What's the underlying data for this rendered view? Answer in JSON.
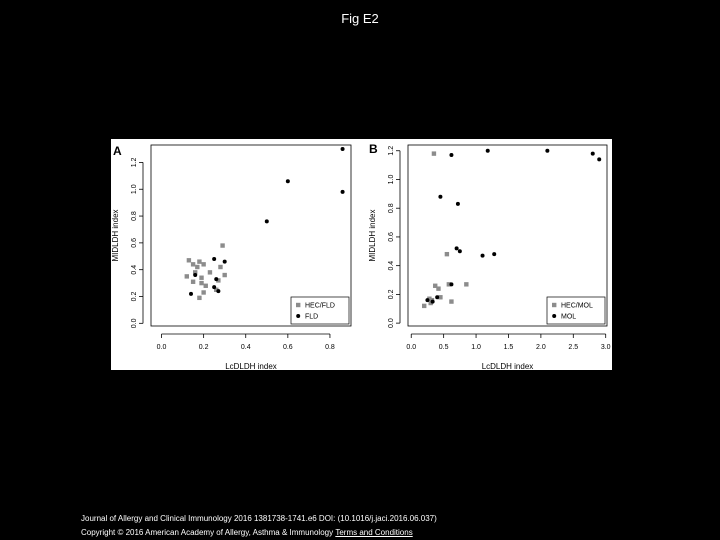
{
  "page": {
    "title": "Fig E2",
    "citation": "Journal of Allergy and Clinical Immunology 2016 1381738-1741.e6 DOI: (10.1016/j.jaci.2016.06.037)",
    "copyright": "Copyright © 2016 American Academy of Allergy, Asthma & Immunology",
    "terms_link": "Terms and Conditions"
  },
  "colors": {
    "group_a": "#8c8c8c",
    "group_b": "#000000"
  },
  "chart_data": [
    {
      "type": "scatter",
      "panel_label": "A",
      "xlabel": "LcDLDH index",
      "ylabel": "MIDLDH index",
      "xlim": [
        -0.05,
        0.9
      ],
      "ylim": [
        -0.02,
        1.33
      ],
      "xticks": [
        0.0,
        0.2,
        0.4,
        0.6,
        0.8
      ],
      "xtick_labels": [
        "0.0",
        "0.2",
        "0.4",
        "0.6",
        "0.8"
      ],
      "yticks": [
        0.0,
        0.2,
        0.4,
        0.6,
        0.8,
        1.0,
        1.2
      ],
      "ytick_labels": [
        "0.0",
        "0.2",
        "0.4",
        "0.6",
        "0.8",
        "1.0",
        "1.2"
      ],
      "legend_position": "bottom-right",
      "grid": false,
      "series": [
        {
          "name": "HEC/FLD",
          "marker": "square",
          "points": [
            [
              0.12,
              0.35
            ],
            [
              0.13,
              0.47
            ],
            [
              0.15,
              0.44
            ],
            [
              0.15,
              0.31
            ],
            [
              0.16,
              0.38
            ],
            [
              0.17,
              0.42
            ],
            [
              0.18,
              0.46
            ],
            [
              0.18,
              0.19
            ],
            [
              0.19,
              0.34
            ],
            [
              0.19,
              0.3
            ],
            [
              0.2,
              0.44
            ],
            [
              0.2,
              0.23
            ],
            [
              0.21,
              0.28
            ],
            [
              0.23,
              0.38
            ],
            [
              0.27,
              0.32
            ],
            [
              0.28,
              0.42
            ],
            [
              0.29,
              0.58
            ],
            [
              0.3,
              0.36
            ],
            [
              0.26,
              0.25
            ]
          ]
        },
        {
          "name": "FLD",
          "marker": "circle",
          "points": [
            [
              0.14,
              0.22
            ],
            [
              0.16,
              0.36
            ],
            [
              0.25,
              0.48
            ],
            [
              0.26,
              0.33
            ],
            [
              0.25,
              0.27
            ],
            [
              0.27,
              0.24
            ],
            [
              0.3,
              0.46
            ],
            [
              0.5,
              0.76
            ],
            [
              0.6,
              1.06
            ],
            [
              0.86,
              1.3
            ],
            [
              0.86,
              0.98
            ]
          ]
        }
      ]
    },
    {
      "type": "scatter",
      "panel_label": "B",
      "xlabel": "LcDLDH index",
      "ylabel": "MIDLDH index",
      "xlim": [
        -0.05,
        3.02
      ],
      "ylim": [
        -0.02,
        1.24
      ],
      "xticks": [
        0.0,
        0.5,
        1.0,
        1.5,
        2.0,
        2.5,
        3.0
      ],
      "xtick_labels": [
        "0.0",
        "0.5",
        "1.0",
        "1.5",
        "2.0",
        "2.5",
        "3.0"
      ],
      "yticks": [
        0.0,
        0.2,
        0.4,
        0.6,
        0.8,
        1.0,
        1.2
      ],
      "ytick_labels": [
        "0.0",
        "0.2",
        "0.4",
        "0.6",
        "0.8",
        "1.0",
        "1.2"
      ],
      "legend_position": "bottom-right",
      "grid": false,
      "series": [
        {
          "name": "HEC/MOL",
          "marker": "square",
          "points": [
            [
              0.2,
              0.12
            ],
            [
              0.28,
              0.17
            ],
            [
              0.3,
              0.14
            ],
            [
              0.32,
              0.16
            ],
            [
              0.35,
              1.18
            ],
            [
              0.37,
              0.26
            ],
            [
              0.42,
              0.24
            ],
            [
              0.45,
              0.18
            ],
            [
              0.55,
              0.48
            ],
            [
              0.58,
              0.27
            ],
            [
              0.62,
              0.15
            ],
            [
              0.85,
              0.27
            ]
          ]
        },
        {
          "name": "MOL",
          "marker": "circle",
          "points": [
            [
              0.25,
              0.16
            ],
            [
              0.33,
              0.15
            ],
            [
              0.4,
              0.18
            ],
            [
              0.45,
              0.88
            ],
            [
              0.62,
              0.27
            ],
            [
              0.62,
              1.17
            ],
            [
              0.7,
              0.52
            ],
            [
              0.72,
              0.83
            ],
            [
              0.75,
              0.5
            ],
            [
              1.1,
              0.47
            ],
            [
              1.18,
              1.2
            ],
            [
              1.28,
              0.48
            ],
            [
              2.1,
              1.2
            ],
            [
              2.8,
              1.18
            ],
            [
              2.9,
              1.14
            ]
          ]
        }
      ]
    }
  ]
}
